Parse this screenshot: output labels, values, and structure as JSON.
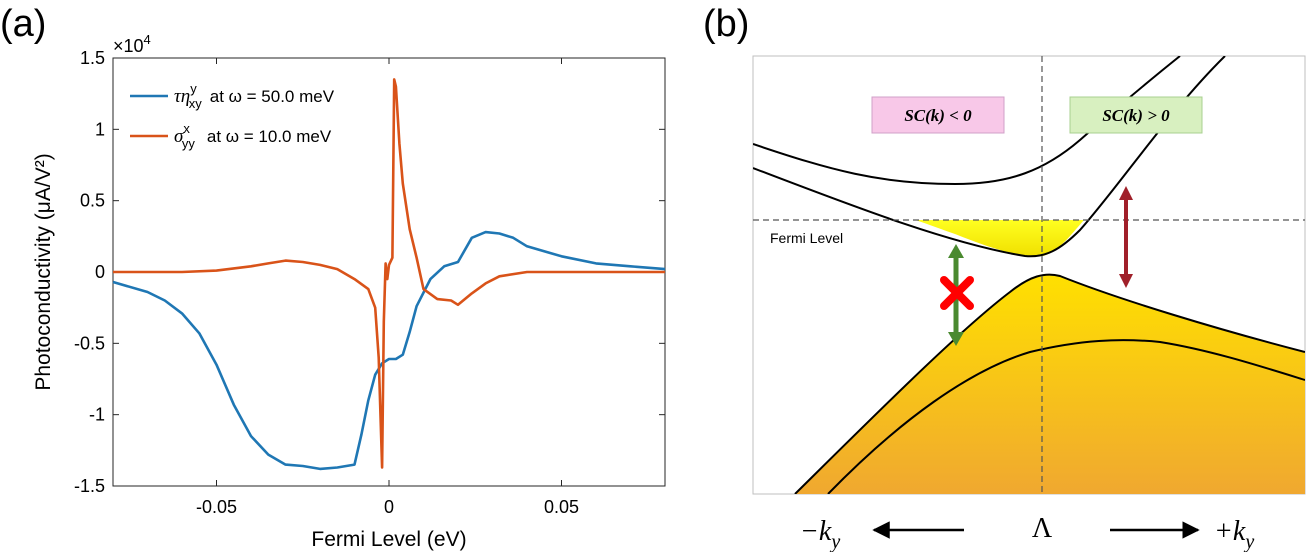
{
  "panel_a": {
    "label": "(a)",
    "multiplier": "×10",
    "multiplier_exp": "4",
    "ylabel": "Photoconductivity (μA/V²)",
    "xlabel": "Fermi Level (eV)",
    "legend": [
      {
        "math": "τη",
        "sup": "y",
        "sub": "xy",
        "text": "at ω = 50.0 meV",
        "color": "#1f77b4"
      },
      {
        "math": "σ",
        "sup": "x",
        "sub": "yy",
        "text": "at ω = 10.0 meV",
        "color": "#d95319"
      }
    ]
  },
  "panel_b": {
    "label": "(b)",
    "box_left": "SC(k) < 0",
    "box_right": "SC(k) > 0",
    "box_left_color": "#f8c8e8",
    "box_right_color": "#d8f0c0",
    "fermi_label": "Fermi Level",
    "k_minus": "−k",
    "k_minus_sub": "y",
    "lambda": "Λ",
    "k_plus": "+k",
    "k_plus_sub": "y",
    "arrow_green": "#4a8a30",
    "arrow_red": "#a0202a",
    "cross_color": "#ff0000",
    "fill_color": "#f5c000"
  },
  "chart_data": {
    "type": "line",
    "xlim": [
      -0.08,
      0.08
    ],
    "ylim": [
      -1.5,
      1.5
    ],
    "xticks": [
      -0.05,
      0,
      0.05
    ],
    "xtick_labels": [
      "-0.05",
      "0",
      "0.05"
    ],
    "yticks": [
      -1.5,
      -1,
      -0.5,
      0,
      0.5,
      1,
      1.5
    ],
    "ytick_labels": [
      "-1.5",
      "-1",
      "-0.5",
      "0",
      "0.5",
      "1",
      "1.5"
    ],
    "series": [
      {
        "color": "#1f77b4",
        "x": [
          -0.08,
          -0.07,
          -0.065,
          -0.06,
          -0.055,
          -0.05,
          -0.045,
          -0.04,
          -0.035,
          -0.03,
          -0.025,
          -0.02,
          -0.015,
          -0.01,
          -0.008,
          -0.006,
          -0.004,
          -0.002,
          0.0,
          0.002,
          0.004,
          0.006,
          0.008,
          0.012,
          0.016,
          0.02,
          0.024,
          0.028,
          0.032,
          0.036,
          0.04,
          0.05,
          0.06,
          0.07,
          0.08
        ],
        "y": [
          -0.07,
          -0.14,
          -0.2,
          -0.29,
          -0.43,
          -0.65,
          -0.93,
          -1.15,
          -1.28,
          -1.35,
          -1.36,
          -1.38,
          -1.37,
          -1.35,
          -1.14,
          -0.9,
          -0.72,
          -0.64,
          -0.61,
          -0.61,
          -0.58,
          -0.42,
          -0.24,
          -0.05,
          0.04,
          0.07,
          0.24,
          0.28,
          0.27,
          0.24,
          0.18,
          0.11,
          0.06,
          0.04,
          0.02
        ]
      },
      {
        "color": "#d95319",
        "x": [
          -0.08,
          -0.06,
          -0.05,
          -0.04,
          -0.035,
          -0.03,
          -0.025,
          -0.02,
          -0.015,
          -0.01,
          -0.006,
          -0.004,
          -0.003,
          -0.002,
          -0.0015,
          -0.001,
          -0.0005,
          0.0,
          0.001,
          0.0015,
          0.002,
          0.003,
          0.004,
          0.006,
          0.008,
          0.01,
          0.014,
          0.018,
          0.02,
          0.024,
          0.028,
          0.032,
          0.04,
          0.05,
          0.06,
          0.07,
          0.08
        ],
        "y": [
          0.0,
          0.0,
          0.01,
          0.04,
          0.06,
          0.08,
          0.07,
          0.05,
          0.02,
          -0.05,
          -0.12,
          -0.25,
          -0.6,
          -1.37,
          -0.35,
          0.06,
          -0.05,
          0.05,
          0.1,
          1.35,
          1.3,
          0.9,
          0.62,
          0.3,
          0.1,
          -0.12,
          -0.19,
          -0.2,
          -0.23,
          -0.15,
          -0.08,
          -0.03,
          0.0,
          0.0,
          0.0,
          0.0,
          0.0
        ]
      }
    ]
  }
}
